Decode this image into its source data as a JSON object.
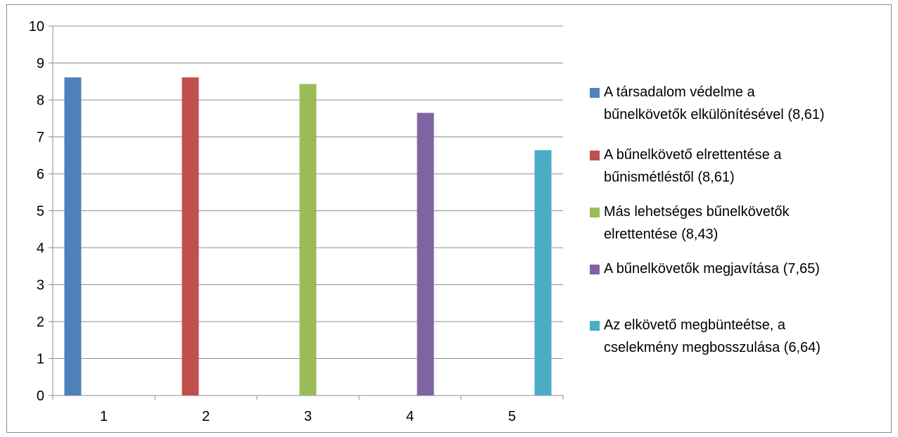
{
  "chart_data": {
    "type": "bar",
    "categories": [
      "1",
      "2",
      "3",
      "4",
      "5"
    ],
    "ylim": [
      0,
      10
    ],
    "ytick_labels": [
      "0",
      "1",
      "2",
      "3",
      "4",
      "5",
      "6",
      "7",
      "8",
      "9",
      "10"
    ],
    "grid": true,
    "legend_position": "right",
    "series": [
      {
        "name": "A társadalom védelme a bűnelkövetők elkülönítésével (8,61)",
        "category": "1",
        "value": 8.61,
        "color": "#4f81bd"
      },
      {
        "name": "A bűnelkövető elrettentése a bűnismétléstől (8,61)",
        "category": "2",
        "value": 8.61,
        "color": "#c0504d"
      },
      {
        "name": "Más lehetséges bűnelkövetők elrettentése (8,43)",
        "category": "3",
        "value": 8.43,
        "color": "#9bbb59"
      },
      {
        "name": "A bűnelkövetők megjavítása (7,65)",
        "category": "4",
        "value": 7.65,
        "color": "#8064a2"
      },
      {
        "name": "Az elkövető megbünteétse, a cselekmény megbosszulása (6,64)",
        "category": "5",
        "value": 6.64,
        "color": "#4bacc6"
      }
    ]
  },
  "legend": {
    "items": [
      {
        "line1": "A társadalom védelme a",
        "line2": "bűnelkövetők elkülönítésével (8,61)",
        "color": "#4f81bd"
      },
      {
        "line1": "A bűnelkövető elrettentése a",
        "line2": "bűnismétléstől (8,61)",
        "color": "#c0504d"
      },
      {
        "line1": "Más lehetséges bűnelkövetők",
        "line2": "elrettentése (8,43)",
        "color": "#9bbb59"
      },
      {
        "line1": "A bűnelkövetők megjavítása (7,65)",
        "line2": "",
        "color": "#8064a2"
      },
      {
        "line1": "Az elkövető megbünteétse, a",
        "line2": "cselekmény megbosszulása (6,64)",
        "color": "#4bacc6"
      }
    ]
  }
}
